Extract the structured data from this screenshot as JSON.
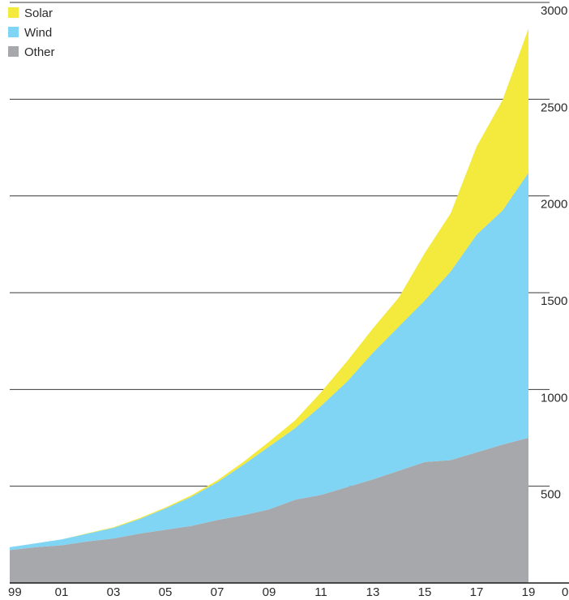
{
  "chart_data": {
    "type": "area",
    "stacked": true,
    "x": [
      "1999",
      "2000",
      "2001",
      "2002",
      "2003",
      "2004",
      "2005",
      "2006",
      "2007",
      "2008",
      "2009",
      "2010",
      "2011",
      "2012",
      "2013",
      "2014",
      "2015",
      "2016",
      "2017",
      "2018",
      "2019"
    ],
    "x_tick_labels": [
      "99",
      "01",
      "03",
      "05",
      "07",
      "09",
      "11",
      "13",
      "15",
      "17",
      "19"
    ],
    "x_tick_years": [
      1999,
      2001,
      2003,
      2005,
      2007,
      2009,
      2011,
      2013,
      2015,
      2017,
      2019
    ],
    "y_tick_labels": [
      "0",
      "500",
      "1000",
      "1500",
      "2000",
      "2500",
      "3000"
    ],
    "y_tick_values": [
      0,
      500,
      1000,
      1500,
      2000,
      2500,
      3000
    ],
    "ylim": [
      0,
      3000
    ],
    "grid": true,
    "legend_position": "top-left",
    "series": [
      {
        "name": "Other",
        "color": "#a7a8ab",
        "values": [
          170,
          185,
          195,
          215,
          230,
          255,
          275,
          295,
          325,
          350,
          380,
          430,
          455,
          495,
          535,
          580,
          625,
          635,
          675,
          715,
          750
        ]
      },
      {
        "name": "Wind",
        "color": "#80d4f4",
        "values": [
          15,
          20,
          30,
          40,
          55,
          75,
          110,
          150,
          195,
          260,
          325,
          370,
          460,
          545,
          655,
          745,
          835,
          975,
          1125,
          1210,
          1370
        ]
      },
      {
        "name": "Solar",
        "color": "#f4ea3d",
        "values": [
          0,
          0,
          0,
          2,
          3,
          5,
          5,
          8,
          10,
          15,
          25,
          40,
          70,
          105,
          125,
          150,
          245,
          300,
          455,
          570,
          745
        ]
      }
    ]
  }
}
